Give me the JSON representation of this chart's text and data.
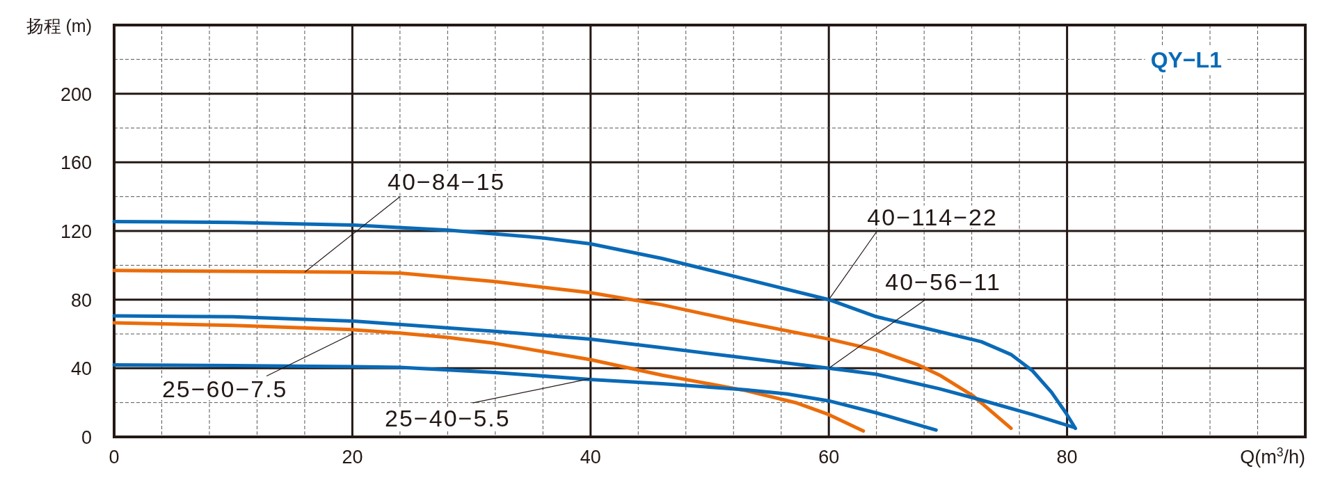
{
  "chart_data": {
    "type": "line",
    "title": "QY−L1",
    "xlabel": "Q(m$^{3}$/h)",
    "ylabel": "扬程 (m)",
    "xlim": [
      0,
      100
    ],
    "ylim": [
      0,
      240
    ],
    "xticks": [
      0,
      {
        "value": 4,
        "label": null
      },
      {
        "value": 8,
        "label": null
      },
      {
        "value": 12,
        "label": null
      },
      {
        "value": 16,
        "label": null
      },
      20,
      {
        "value": 24,
        "label": null
      },
      {
        "value": 28,
        "label": null
      },
      {
        "value": 32,
        "label": null
      },
      {
        "value": 36,
        "label": null
      },
      40,
      {
        "value": 44,
        "label": null
      },
      {
        "value": 48,
        "label": null
      },
      {
        "value": 52,
        "label": null
      },
      {
        "value": 56,
        "label": null
      },
      60,
      {
        "value": 64,
        "label": null
      },
      {
        "value": 68,
        "label": null
      },
      {
        "value": 72,
        "label": null
      },
      {
        "value": 76,
        "label": null
      },
      80,
      {
        "value": 84,
        "label": null
      },
      {
        "value": 88,
        "label": null
      },
      {
        "value": 92,
        "label": null
      },
      {
        "value": 96,
        "label": null
      }
    ],
    "yticks": [
      0,
      {
        "value": 20,
        "label": null
      },
      40,
      {
        "value": 60,
        "label": null
      },
      80,
      {
        "value": 100,
        "label": null
      },
      120,
      {
        "value": 140,
        "label": null
      },
      160,
      {
        "value": 180,
        "label": null
      },
      200,
      {
        "value": 220,
        "label": null
      }
    ],
    "grid": true,
    "line_style": "solid",
    "series": [
      {
        "color": "#0a6ab6",
        "x": [
          0,
          10,
          20,
          28,
          36,
          40,
          46,
          53,
          60,
          64,
          68.6,
          72.8,
          75.3,
          77.1,
          78.7,
          79.9,
          80.7
        ],
        "values": [
          125.5,
          125,
          123.5,
          120.5,
          116,
          112.5,
          104,
          92,
          80,
          70,
          62.5,
          55.5,
          48,
          38.5,
          26,
          14,
          5
        ]
      },
      {
        "color": "#eb6c0a",
        "x": [
          0,
          10,
          20,
          24,
          32,
          40,
          46,
          52,
          60,
          64,
          67.5,
          69.3,
          72.1,
          75.3
        ],
        "values": [
          97,
          96.5,
          96,
          95.5,
          90.5,
          84,
          77,
          68,
          57,
          50.5,
          42,
          36,
          24,
          5
        ]
      },
      {
        "color": "#0a6ab6",
        "x": [
          0,
          10,
          20,
          32,
          40,
          46,
          53,
          60,
          64,
          69.3,
          72.8,
          77.1,
          80.6
        ],
        "values": [
          70.5,
          70,
          67.5,
          61.5,
          57,
          52,
          46,
          40,
          36.5,
          28,
          21.5,
          13,
          5.5
        ]
      },
      {
        "color": "#eb6c0a",
        "x": [
          0,
          10,
          20,
          24,
          28,
          32,
          40,
          46,
          53,
          57.2,
          60,
          62.9
        ],
        "values": [
          66.5,
          65,
          62.5,
          60.5,
          58,
          54.5,
          45,
          36,
          27,
          20,
          13,
          3.5
        ]
      },
      {
        "color": "#0a6ab6",
        "x": [
          0,
          10,
          20,
          24,
          32,
          40,
          46,
          53,
          56.5,
          60,
          64,
          69
        ],
        "values": [
          42,
          41.5,
          41,
          40.5,
          37.5,
          33.5,
          31,
          27.5,
          25,
          21,
          14,
          4
        ]
      }
    ],
    "annotations": [
      {
        "text": "40−114−22",
        "x": 60,
        "y": 80
      },
      {
        "text": "40−56−11",
        "x": 60,
        "y": 40
      },
      {
        "text": "40−84−15",
        "x": 16,
        "y": 96
      },
      {
        "text": "25−60−7.5",
        "x": 20,
        "y": 60
      },
      {
        "text": "25−40−5.5",
        "x": 40,
        "y": 34
      }
    ]
  }
}
